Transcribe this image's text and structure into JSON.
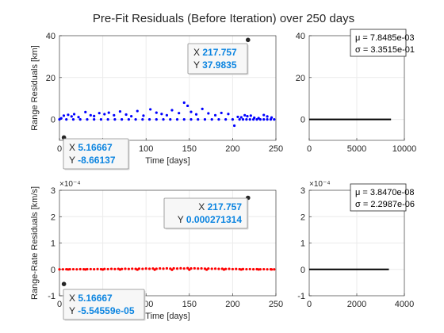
{
  "figure_title": "Pre-Fit Residuals (Before Iteration) over 250 days",
  "colors": {
    "range_series": "#0000ff",
    "rate_series": "#ff0000",
    "datatip_value": "#0b84e0",
    "grid": "#ebebeb",
    "axes": "#262626",
    "histogram": "#000000"
  },
  "chart_data": [
    {
      "id": "range_scatter",
      "type": "scatter",
      "title": "",
      "xlabel": "Time [days]",
      "ylabel": "Range Residuals [km]",
      "xlim": [
        0,
        250
      ],
      "ylim": [
        -10,
        40
      ],
      "xticks": [
        "0",
        "50",
        "100",
        "150",
        "200",
        "250"
      ],
      "yticks": [
        "0",
        "20",
        "40"
      ],
      "grid": true,
      "series": [
        {
          "name": "",
          "x": [
            2,
            5,
            10,
            14,
            17,
            22,
            30,
            36,
            40,
            46,
            52,
            57,
            63,
            70,
            77,
            83,
            90,
            97,
            105,
            112,
            118,
            124,
            130,
            138,
            144,
            148,
            152,
            158,
            165,
            172,
            180,
            187,
            195,
            202,
            206,
            210,
            214,
            217,
            221,
            225,
            230,
            236,
            240,
            245,
            0,
            8,
            16,
            24,
            32,
            40,
            48,
            56,
            64,
            72,
            80,
            88,
            96,
            104,
            112,
            120,
            128,
            136,
            144,
            152,
            160,
            168,
            176,
            184,
            192,
            200,
            208,
            212,
            216,
            220,
            224,
            228,
            232,
            236,
            240,
            244,
            248
          ],
          "y": [
            0.5,
            1.8,
            2.2,
            1.4,
            2.5,
            1.1,
            3.5,
            2.0,
            1.6,
            3.0,
            2.5,
            3.2,
            2.0,
            3.8,
            2.3,
            1.5,
            4.0,
            1.8,
            4.8,
            3.2,
            2.6,
            2.0,
            4.4,
            3.0,
            8.0,
            6.5,
            3.6,
            2.4,
            5.0,
            2.9,
            2.0,
            3.1,
            2.6,
            -3.0,
            1.2,
            1.0,
            2.0,
            1.5,
            1.8,
            0.8,
            0.6,
            2.1,
            1.4,
            0.9,
            0,
            0,
            0,
            0,
            0,
            0,
            0,
            0,
            0,
            0,
            0,
            0,
            0,
            0,
            0,
            0,
            0,
            0,
            0,
            0,
            0,
            0,
            0,
            0,
            0,
            0,
            0,
            0,
            0,
            0,
            0,
            0,
            0,
            0,
            0,
            0,
            0
          ]
        }
      ],
      "datatips": [
        {
          "x_label": "X",
          "x_value": "217.757",
          "y_label": "Y",
          "y_value": "37.9835",
          "point": [
            217.757,
            37.9835
          ]
        },
        {
          "x_label": "X",
          "x_value": "5.16667",
          "y_label": "Y",
          "y_value": "-8.66137",
          "point": [
            5.16667,
            -8.66137
          ]
        }
      ]
    },
    {
      "id": "range_hist",
      "type": "bar",
      "title": "",
      "xlim": [
        0,
        10000
      ],
      "ylim": [
        -10,
        40
      ],
      "xticks": [
        "0",
        "5000",
        "10000"
      ],
      "yticks": [
        "0",
        "20",
        "40"
      ],
      "grid": true,
      "series": [
        {
          "name": "",
          "bins": [
            0
          ],
          "counts": [
            8600
          ]
        }
      ],
      "legend": {
        "placement": "top-right",
        "lines": [
          "μ = 7.8485e-03",
          "σ = 3.3515e-01"
        ]
      }
    },
    {
      "id": "rate_scatter",
      "type": "scatter",
      "title": "",
      "xlabel": "Time [days]",
      "ylabel": "Range-Rate Residuals [km/s]",
      "xlim": [
        0,
        250
      ],
      "ylim": [
        -0.0001,
        0.0003
      ],
      "y_exponent": "×10⁻⁴",
      "xticks": [
        "0",
        "50",
        "100",
        "150",
        "200",
        "250"
      ],
      "yticks": [
        "-1",
        "0",
        "1",
        "2",
        "3"
      ],
      "grid": true,
      "series": [
        {
          "name": "",
          "x": [
            0,
            4,
            8,
            12,
            16,
            20,
            24,
            28,
            32,
            36,
            40,
            44,
            48,
            52,
            56,
            60,
            64,
            68,
            72,
            76,
            80,
            84,
            88,
            92,
            96,
            100,
            104,
            108,
            112,
            116,
            120,
            124,
            128,
            132,
            136,
            140,
            144,
            148,
            152,
            156,
            160,
            164,
            168,
            172,
            176,
            180,
            184,
            188,
            192,
            196,
            200,
            204,
            208,
            212,
            216,
            220,
            224,
            228,
            232,
            236,
            240,
            244,
            248,
            10,
            30,
            50,
            70,
            90,
            110,
            130,
            150,
            170,
            190,
            210,
            230,
            245
          ],
          "y": [
            0,
            2e-07,
            5e-07,
            3e-07,
            6e-07,
            2e-07,
            8e-07,
            4e-07,
            7e-07,
            1e-06,
            5e-07,
            1.2e-06,
            8e-07,
            1.5e-06,
            1e-06,
            1.8e-06,
            1.2e-06,
            2e-06,
            1.4e-06,
            2.2e-06,
            1.6e-06,
            2.5e-06,
            1.8e-06,
            2.8e-06,
            2e-06,
            3e-06,
            2.2e-06,
            3.2e-06,
            2.4e-06,
            3.5e-06,
            2.6e-06,
            3.8e-06,
            2.8e-06,
            4e-06,
            3e-06,
            4.2e-06,
            3.2e-06,
            4.4e-06,
            3.4e-06,
            4e-06,
            3e-06,
            3.6e-06,
            2.6e-06,
            3.2e-06,
            2.2e-06,
            2.8e-06,
            1.8e-06,
            2.4e-06,
            1.4e-06,
            2e-06,
            1e-06,
            1.6e-06,
            8e-07,
            1.2e-06,
            6e-07,
            1e-06,
            4e-07,
            8e-07,
            2e-07,
            6e-07,
            2e-07,
            4e-07,
            1e-07,
            -2e-07,
            -4e-07,
            -6e-07,
            -8e-07,
            -1e-06,
            -1.2e-06,
            -1.4e-06,
            -1.2e-06,
            -1e-06,
            -8e-07,
            -6e-07,
            -4e-07,
            -2e-07
          ]
        }
      ],
      "datatips": [
        {
          "x_label": "X",
          "x_value": "217.757",
          "y_label": "Y",
          "y_value": "0.000271314",
          "point": [
            217.757,
            0.000271314
          ]
        },
        {
          "x_label": "X",
          "x_value": "5.16667",
          "y_label": "Y",
          "y_value": "-5.54559e-05",
          "point": [
            5.16667,
            -5.54559e-05
          ]
        }
      ]
    },
    {
      "id": "rate_hist",
      "type": "bar",
      "title": "",
      "xlim": [
        0,
        4000
      ],
      "ylim": [
        -0.0001,
        0.0003
      ],
      "y_exponent": "×10⁻⁴",
      "xticks": [
        "0",
        "2000",
        "4000"
      ],
      "yticks": [
        "-1",
        "0",
        "1",
        "2",
        "3"
      ],
      "grid": true,
      "series": [
        {
          "name": "",
          "bins": [
            0
          ],
          "counts": [
            3350
          ]
        }
      ],
      "legend": {
        "placement": "top-right",
        "lines": [
          "μ = 3.8470e-08",
          "σ = 2.2987e-06"
        ]
      }
    }
  ]
}
